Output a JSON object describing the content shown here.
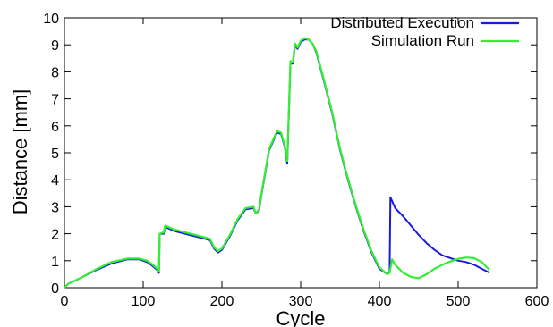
{
  "chart_data": {
    "type": "line",
    "title": "",
    "xlabel": "Cycle",
    "ylabel": "Distance [mm]",
    "xlim": [
      0,
      600
    ],
    "ylim": [
      0,
      10
    ],
    "xticks": [
      0,
      100,
      200,
      300,
      400,
      500,
      600
    ],
    "yticks": [
      0,
      1,
      2,
      3,
      4,
      5,
      6,
      7,
      8,
      9,
      10
    ],
    "xtick_labels": [
      "0",
      "100",
      "200",
      "300",
      "400",
      "500",
      "600"
    ],
    "ytick_labels": [
      "0",
      "1",
      "2",
      "3",
      "4",
      "5",
      "6",
      "7",
      "8",
      "9",
      "10"
    ],
    "grid": false,
    "legend_position": "top-right",
    "series": [
      {
        "name": "Distributed Execution",
        "color": "#1a1adb",
        "x": [
          0,
          5,
          20,
          40,
          60,
          80,
          95,
          105,
          112,
          118,
          120,
          121,
          126,
          128,
          140,
          160,
          180,
          185,
          190,
          195,
          200,
          210,
          220,
          230,
          240,
          243,
          247,
          250,
          260,
          270,
          275,
          280,
          283,
          287,
          288,
          290,
          293,
          296,
          300,
          305,
          310,
          315,
          320,
          330,
          340,
          350,
          360,
          370,
          380,
          390,
          400,
          410,
          413,
          414,
          420,
          430,
          440,
          450,
          460,
          470,
          480,
          490,
          500,
          510,
          520,
          530,
          540
        ],
        "y": [
          0,
          0.15,
          0.35,
          0.65,
          0.9,
          1.05,
          1.05,
          0.95,
          0.8,
          0.65,
          0.55,
          2.0,
          2.0,
          2.25,
          2.1,
          1.95,
          1.8,
          1.75,
          1.45,
          1.3,
          1.4,
          1.9,
          2.5,
          2.9,
          2.95,
          2.75,
          2.85,
          3.4,
          5.1,
          5.75,
          5.7,
          5.2,
          4.6,
          8.35,
          8.3,
          8.3,
          9.0,
          8.85,
          9.1,
          9.2,
          9.2,
          9.05,
          8.7,
          7.6,
          6.45,
          5.1,
          4.0,
          3.0,
          2.1,
          1.3,
          0.7,
          0.5,
          0.6,
          3.35,
          2.95,
          2.65,
          2.3,
          1.95,
          1.65,
          1.4,
          1.2,
          1.1,
          1.0,
          0.95,
          0.85,
          0.7,
          0.55
        ]
      },
      {
        "name": "Simulation Run",
        "color": "#33ee33",
        "x": [
          0,
          5,
          20,
          40,
          60,
          80,
          95,
          105,
          112,
          118,
          120,
          121,
          126,
          128,
          140,
          160,
          180,
          185,
          190,
          195,
          200,
          210,
          220,
          230,
          240,
          243,
          247,
          250,
          260,
          270,
          275,
          280,
          283,
          287,
          288,
          290,
          293,
          296,
          300,
          305,
          310,
          315,
          320,
          330,
          340,
          350,
          360,
          370,
          380,
          390,
          400,
          410,
          413,
          416,
          420,
          425,
          430,
          440,
          450,
          460,
          470,
          480,
          490,
          500,
          510,
          520,
          530,
          540
        ],
        "y": [
          0,
          0.15,
          0.35,
          0.68,
          0.95,
          1.08,
          1.08,
          1.0,
          0.85,
          0.7,
          0.6,
          2.0,
          2.05,
          2.3,
          2.15,
          2.0,
          1.85,
          1.8,
          1.5,
          1.35,
          1.45,
          1.95,
          2.55,
          2.95,
          3.0,
          2.75,
          2.9,
          3.45,
          5.15,
          5.8,
          5.75,
          5.25,
          4.7,
          8.4,
          8.35,
          8.35,
          9.05,
          8.9,
          9.15,
          9.25,
          9.2,
          9.05,
          8.75,
          7.65,
          6.5,
          5.15,
          4.05,
          3.05,
          2.15,
          1.35,
          0.75,
          0.5,
          0.55,
          1.05,
          0.85,
          0.7,
          0.55,
          0.4,
          0.35,
          0.5,
          0.7,
          0.85,
          0.97,
          1.07,
          1.12,
          1.1,
          0.95,
          0.65
        ]
      }
    ]
  }
}
